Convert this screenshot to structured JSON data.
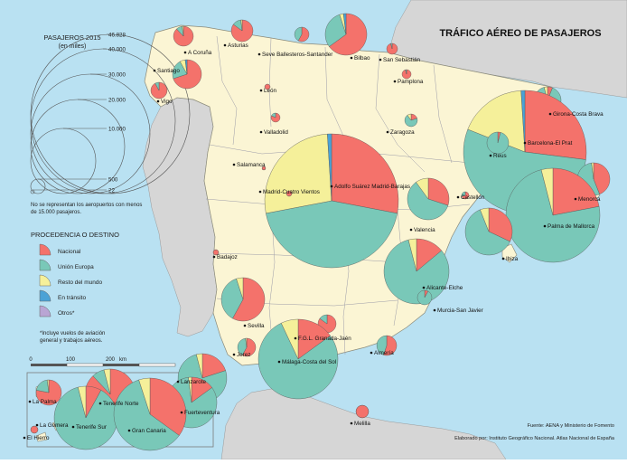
{
  "title": "TRÁFICO AÉREO DE PASAJEROS",
  "size_legend": {
    "title_line1": "PASAJEROS 2015",
    "title_line2": "(en miles)",
    "values": [
      "46.828",
      "40.000",
      "30.000",
      "20.000",
      "10.000",
      "500",
      "22"
    ],
    "note_line1": "No se representan los aeropuertos con menos",
    "note_line2": "de 15.000 pasajeros."
  },
  "category_legend": {
    "title": "PROCEDENCIA O DESTINO",
    "items": [
      {
        "label": "Nacional",
        "color": "#f4726b"
      },
      {
        "label": "Unión Europa",
        "color": "#79c8b8"
      },
      {
        "label": "Resto del mundo",
        "color": "#f5f09a"
      },
      {
        "label": "En tránsito",
        "color": "#4aa2d6"
      },
      {
        "label": "Otros*",
        "color": "#b9a5d4"
      }
    ],
    "footnote_line1": "*Incluye vuelos de aviación",
    "footnote_line2": "general y trabajos aéreos."
  },
  "scalebar": {
    "labels": [
      "0",
      "100",
      "200"
    ],
    "unit": "km"
  },
  "source_line1": "Fuente: AENA y Ministerio de Fomento",
  "source_line2": "Elaborado por: Instituto Geográfico Nacional. Atlas Nacional de España",
  "airports": [
    {
      "name": "A Coruña",
      "nacional": 88,
      "ue": 10,
      "resto": 2
    },
    {
      "name": "Santiago",
      "nacional": 70,
      "ue": 22,
      "resto": 6,
      "transito": 2
    },
    {
      "name": "Vigo",
      "nacional": 92,
      "ue": 8
    },
    {
      "name": "Asturias",
      "nacional": 85,
      "ue": 13,
      "resto": 2
    },
    {
      "name": "Seve Ballesteros-Santander",
      "nacional": 58,
      "ue": 42
    },
    {
      "name": "Bilbao",
      "nacional": 65,
      "ue": 30,
      "resto": 3,
      "transito": 2
    },
    {
      "name": "San Sebastián",
      "nacional": 96,
      "ue": 4
    },
    {
      "name": "Pamplona",
      "nacional": 96,
      "ue": 4
    },
    {
      "name": "León",
      "nacional": 100
    },
    {
      "name": "Valladolid",
      "nacional": 82,
      "ue": 18
    },
    {
      "name": "Salamanca",
      "nacional": 100
    },
    {
      "name": "Zaragoza",
      "nacional": 20,
      "ue": 70,
      "resto": 10
    },
    {
      "name": "Girona-Costa Brava",
      "nacional": 6,
      "ue": 90,
      "resto": 4
    },
    {
      "name": "Barcelona-El Prat",
      "nacional": 27,
      "ue": 54,
      "resto": 18,
      "transito": 1
    },
    {
      "name": "Reus",
      "nacional": 4,
      "ue": 96
    },
    {
      "name": "Adolfo Suárez Madrid-Barajas",
      "nacional": 28,
      "ue": 44,
      "resto": 27,
      "transito": 1
    },
    {
      "name": "Madrid-Cuatro Vientos",
      "nacional": 100
    },
    {
      "name": "Castellón",
      "nacional": 70,
      "ue": 30
    },
    {
      "name": "Valencia",
      "nacional": 30,
      "ue": 60,
      "resto": 10
    },
    {
      "name": "Menorca",
      "nacional": 44,
      "ue": 54,
      "resto": 2
    },
    {
      "name": "Palma de Mallorca",
      "nacional": 22,
      "ue": 74,
      "resto": 4
    },
    {
      "name": "Ibiza",
      "nacional": 32,
      "ue": 62,
      "resto": 6
    },
    {
      "name": "Badajoz",
      "nacional": 100
    },
    {
      "name": "Alicante-Elche",
      "nacional": 14,
      "ue": 82,
      "resto": 4
    },
    {
      "name": "Murcia-San Javier",
      "nacional": 8,
      "ue": 92
    },
    {
      "name": "Sevilla",
      "nacional": 58,
      "ue": 37,
      "resto": 5
    },
    {
      "name": "F.G.L. Granada-Jaén",
      "nacional": 85,
      "ue": 15
    },
    {
      "name": "Jerez",
      "nacional": 58,
      "ue": 40,
      "resto": 2
    },
    {
      "name": "Málaga-Costa del Sol",
      "nacional": 15,
      "ue": 78,
      "resto": 7
    },
    {
      "name": "Almería",
      "nacional": 55,
      "ue": 45
    },
    {
      "name": "Melilla",
      "nacional": 100
    },
    {
      "name": "La Palma",
      "nacional": 78,
      "ue": 20,
      "resto": 2
    },
    {
      "name": "Lanzarote",
      "nacional": 20,
      "ue": 76,
      "resto": 4
    },
    {
      "name": "Tenerife Norte",
      "nacional": 88,
      "ue": 8,
      "resto": 4
    },
    {
      "name": "Fuerteventura",
      "nacional": 15,
      "ue": 83,
      "resto": 2
    },
    {
      "name": "La Gomera",
      "nacional": 100
    },
    {
      "name": "Tenerife Sur",
      "nacional": 8,
      "ue": 88,
      "resto": 4
    },
    {
      "name": "Gran Canaria",
      "nacional": 35,
      "ue": 60,
      "resto": 5
    },
    {
      "name": "El Hierro",
      "nacional": 100
    }
  ]
}
